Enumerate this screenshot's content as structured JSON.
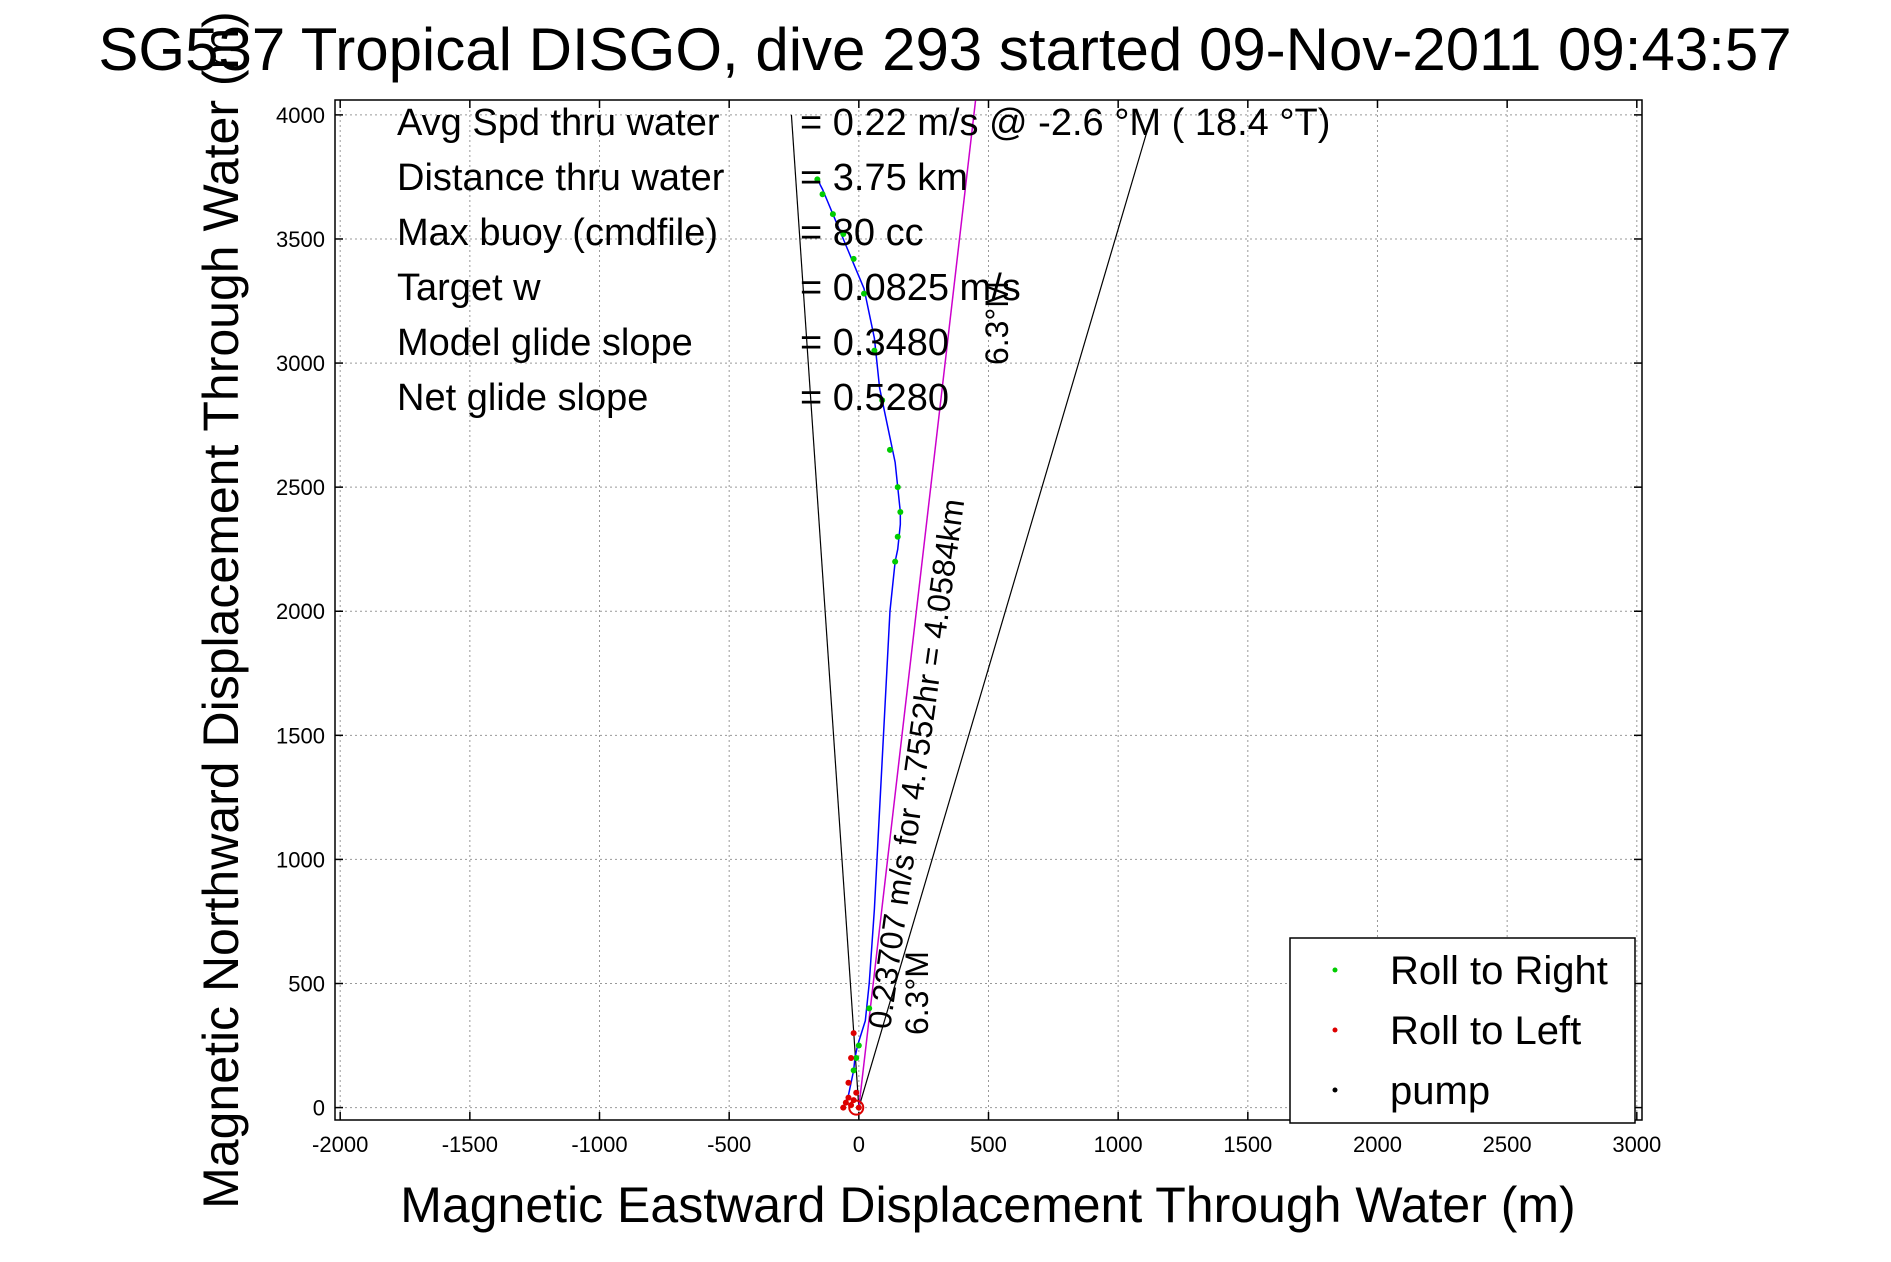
{
  "chart_data": {
    "type": "line",
    "title": "SG537 Tropical DISGO, dive 293 started 09-Nov-2011 09:43:57",
    "xlabel": "Magnetic Eastward Displacement Through Water (m)",
    "ylabel": "Magnetic Northward Displacement Through Water (m)",
    "xlim": [
      -2000,
      3000
    ],
    "ylim": [
      0,
      4000
    ],
    "x_ticks": [
      "-2000",
      "-1500",
      "-1000",
      "-500",
      "0",
      "500",
      "1000",
      "1500",
      "2000",
      "2500",
      "3000"
    ],
    "y_ticks": [
      "0",
      "500",
      "1000",
      "1500",
      "2000",
      "2500",
      "3000",
      "3500",
      "4000"
    ],
    "grid": true,
    "legend_position": "bottom-right",
    "legend": [
      {
        "label": "Roll to Right",
        "color": "#00cc00"
      },
      {
        "label": "Roll to Left",
        "color": "#dd0000"
      },
      {
        "label": "pump",
        "color": "#000000"
      }
    ],
    "stats": [
      {
        "label": "Avg Spd thru water",
        "value": "=  0.22 m/s @  -2.6 °M ( 18.4 °T)"
      },
      {
        "label": "Distance thru water",
        "value": "= 3.75 km"
      },
      {
        "label": "Max buoy (cmdfile)",
        "value": "= 80 cc"
      },
      {
        "label": "Target w",
        "value": "= 0.0825 m/s"
      },
      {
        "label": "Model glide slope",
        "value": "= 0.3480"
      },
      {
        "label": "Net glide slope",
        "value": "= 0.5280"
      }
    ],
    "annotations": {
      "net_vector": "0.23707 m/s for 4.7552hr = 4.0584km",
      "heading_top": "6.3°M",
      "heading_bottom": "6.3°M"
    },
    "series": [
      {
        "name": "track",
        "color": "#0000ff",
        "x": [
          -60,
          -40,
          -30,
          -20,
          -15,
          -5,
          10,
          25,
          40,
          60,
          80,
          100,
          120,
          140,
          150,
          160,
          160,
          150,
          140,
          120,
          100,
          80,
          70,
          60,
          40,
          30,
          20,
          0,
          -20,
          -40,
          -60,
          -80,
          -100,
          -120,
          -140,
          -150,
          -160
        ],
        "y": [
          0,
          50,
          100,
          150,
          200,
          250,
          300,
          350,
          500,
          800,
          1200,
          1600,
          2000,
          2200,
          2250,
          2350,
          2400,
          2500,
          2600,
          2700,
          2800,
          2900,
          3000,
          3100,
          3200,
          3250,
          3300,
          3350,
          3400,
          3450,
          3500,
          3550,
          3600,
          3650,
          3700,
          3720,
          3750
        ]
      },
      {
        "name": "Roll to Right",
        "color": "#00cc00",
        "x": [
          -20,
          -10,
          0,
          40,
          140,
          150,
          160,
          150,
          120,
          90,
          60,
          20,
          -20,
          -60,
          -100,
          -140,
          -160
        ],
        "y": [
          150,
          200,
          250,
          400,
          2200,
          2300,
          2400,
          2500,
          2650,
          2850,
          3050,
          3280,
          3420,
          3520,
          3600,
          3680,
          3740
        ]
      },
      {
        "name": "Roll to Left",
        "color": "#dd0000",
        "x": [
          -60,
          -50,
          -40,
          -30,
          -20,
          -10,
          0,
          -40,
          -30,
          -20
        ],
        "y": [
          0,
          20,
          40,
          10,
          30,
          60,
          0,
          100,
          200,
          300
        ]
      }
    ],
    "net_vector": {
      "from": [
        0,
        0
      ],
      "to": [
        450,
        4058
      ]
    },
    "cone_left": {
      "from": [
        0,
        0
      ],
      "to": [
        -260,
        4000
      ]
    },
    "cone_right": {
      "from": [
        0,
        0
      ],
      "to": [
        1130,
        4000
      ]
    }
  }
}
